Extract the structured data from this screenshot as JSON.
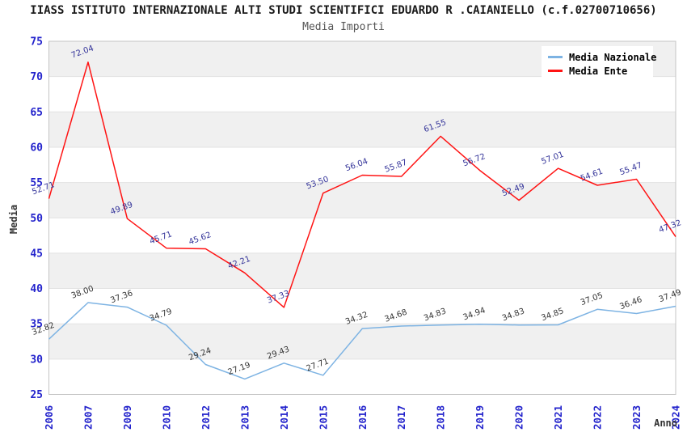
{
  "chart_data": {
    "type": "line",
    "title": "IIASS ISTITUTO INTERNAZIONALE ALTI STUDI SCIENTIFICI EDUARDO R .CAIANIELLO (c.f.02700710656)",
    "subtitle": "Media Importi",
    "xlabel": "Anno",
    "ylabel": "Media",
    "categories": [
      "2006",
      "2007",
      "2009",
      "2010",
      "2012",
      "2013",
      "2014",
      "2015",
      "2016",
      "2017",
      "2018",
      "2019",
      "2020",
      "2021",
      "2022",
      "2023",
      "2024"
    ],
    "series": [
      {
        "name": "Media Nazionale",
        "color": "#7db3e3",
        "label_color": "#333333",
        "values": [
          32.82,
          38.0,
          37.36,
          34.79,
          29.24,
          27.19,
          29.43,
          27.71,
          34.32,
          34.68,
          34.83,
          34.94,
          34.83,
          34.85,
          37.05,
          36.46,
          37.49
        ]
      },
      {
        "name": "Media Ente",
        "color": "#ff1414",
        "label_color": "#333399",
        "values": [
          52.71,
          72.04,
          49.89,
          45.71,
          45.62,
          42.21,
          37.33,
          53.5,
          56.04,
          55.87,
          61.55,
          56.72,
          52.49,
          57.01,
          54.61,
          55.47,
          47.32
        ]
      }
    ],
    "ylim": [
      25,
      75
    ],
    "yticks": [
      25,
      30,
      35,
      40,
      45,
      50,
      55,
      60,
      65,
      70,
      75
    ],
    "legend_position": "top-right",
    "grid": "horizontal-bands",
    "band_colors": [
      "#ffffff",
      "#f0f0f0"
    ],
    "gridline_color": "#e2e2e2",
    "plot_border_color": "#c4c4c4",
    "tick_label_color": "#2323cc",
    "title_color": "#1a1a1a",
    "subtitle_color": "#555555",
    "axis_title_color": "#333333",
    "data_label_rotation": -20
  }
}
